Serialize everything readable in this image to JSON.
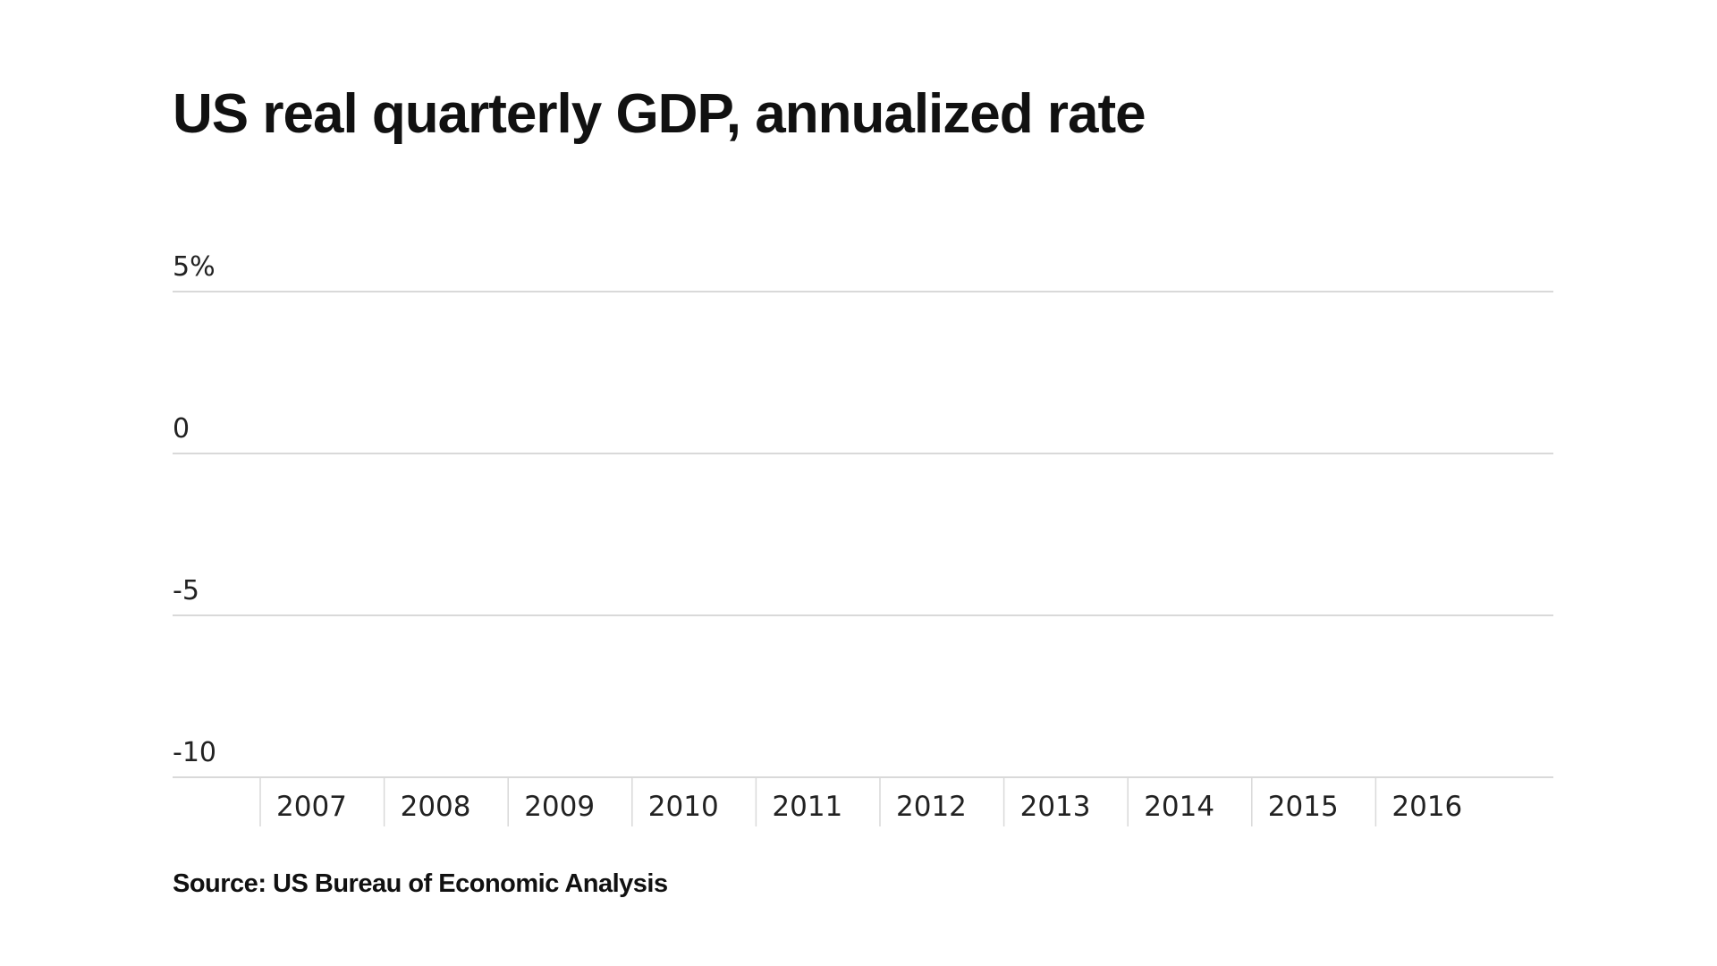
{
  "chart_data": {
    "type": "line",
    "title": "US real quarterly GDP, annualized rate",
    "xlabel": "",
    "ylabel": "",
    "y_ticks": [
      {
        "value": 5,
        "label": "5%"
      },
      {
        "value": 0,
        "label": "0"
      },
      {
        "value": -5,
        "label": "-5"
      },
      {
        "value": -10,
        "label": "-10"
      }
    ],
    "ylim": [
      -10,
      5
    ],
    "x_categories": [
      "2007",
      "2008",
      "2009",
      "2010",
      "2011",
      "2012",
      "2013",
      "2014",
      "2015",
      "2016"
    ],
    "grid": true,
    "series": []
  },
  "source": "Source: US Bureau of Economic Analysis"
}
